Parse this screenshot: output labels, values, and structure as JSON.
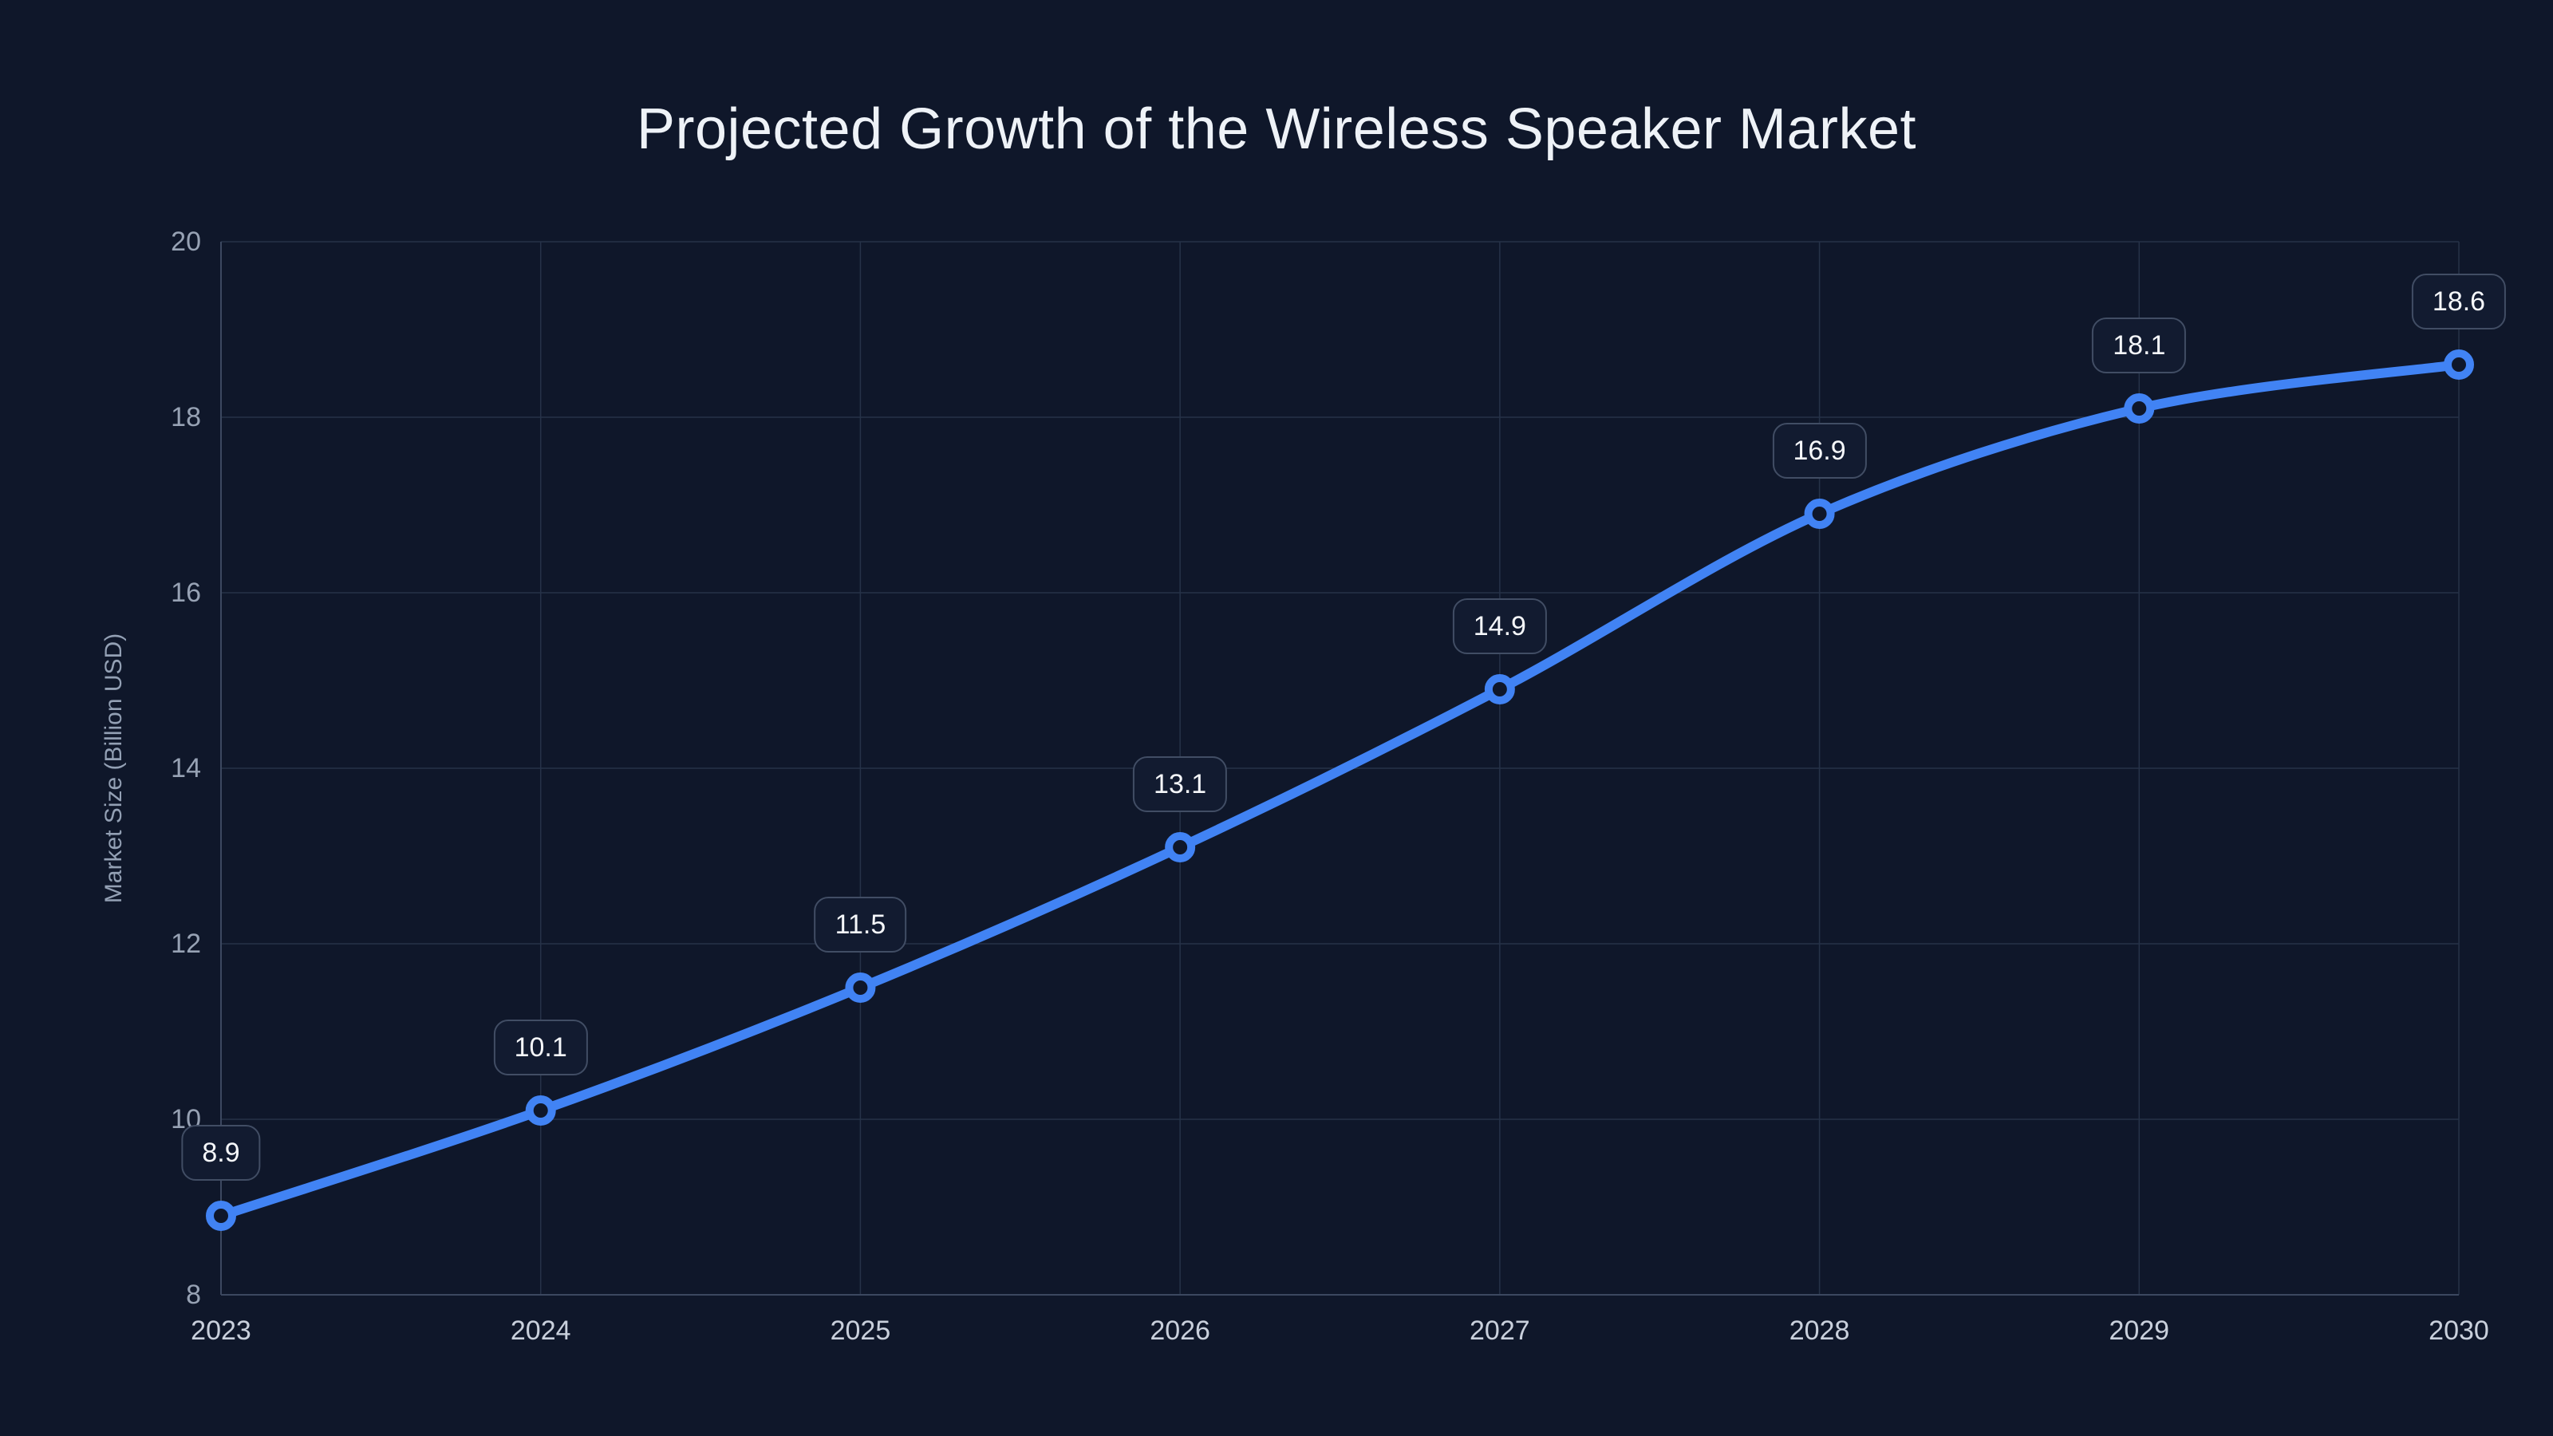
{
  "page": {
    "background": "#0f172a"
  },
  "chart_data": {
    "type": "line",
    "title": "Projected Growth of the Wireless Speaker Market",
    "xlabel": "",
    "ylabel": "Market Size (Billion USD)",
    "categories": [
      "2023",
      "2024",
      "2025",
      "2026",
      "2027",
      "2028",
      "2029",
      "2030"
    ],
    "series": [
      {
        "name": "Market Size (Billion USD)",
        "values": [
          8.9,
          10.1,
          11.5,
          13.1,
          14.9,
          16.9,
          18.1,
          18.6
        ]
      }
    ],
    "point_labels": [
      "8.9",
      "10.1",
      "11.5",
      "13.1",
      "14.9",
      "16.9",
      "18.1",
      "18.6"
    ],
    "ylim": [
      8,
      20
    ],
    "yticks": [
      8,
      10,
      12,
      14,
      16,
      18,
      20
    ],
    "ytick_labels": [
      "8",
      "10",
      "12",
      "14",
      "16",
      "18",
      "20"
    ],
    "grid": true,
    "legend_position": "none",
    "colors": {
      "background": "#0f172a",
      "line": "#4183f4",
      "marker_ring": "#4183f4",
      "marker_fill": "#0f172a",
      "grid": "#263248",
      "axis": "#3c4860",
      "title_text": "#eef2f7",
      "axis_title_text": "#93a0b4",
      "y_tick_text": "#97a2b4",
      "x_tick_text": "#c9d0dc",
      "label_bg": "#121b30",
      "label_border": "#414d64",
      "label_text": "#f5f7fa"
    }
  }
}
